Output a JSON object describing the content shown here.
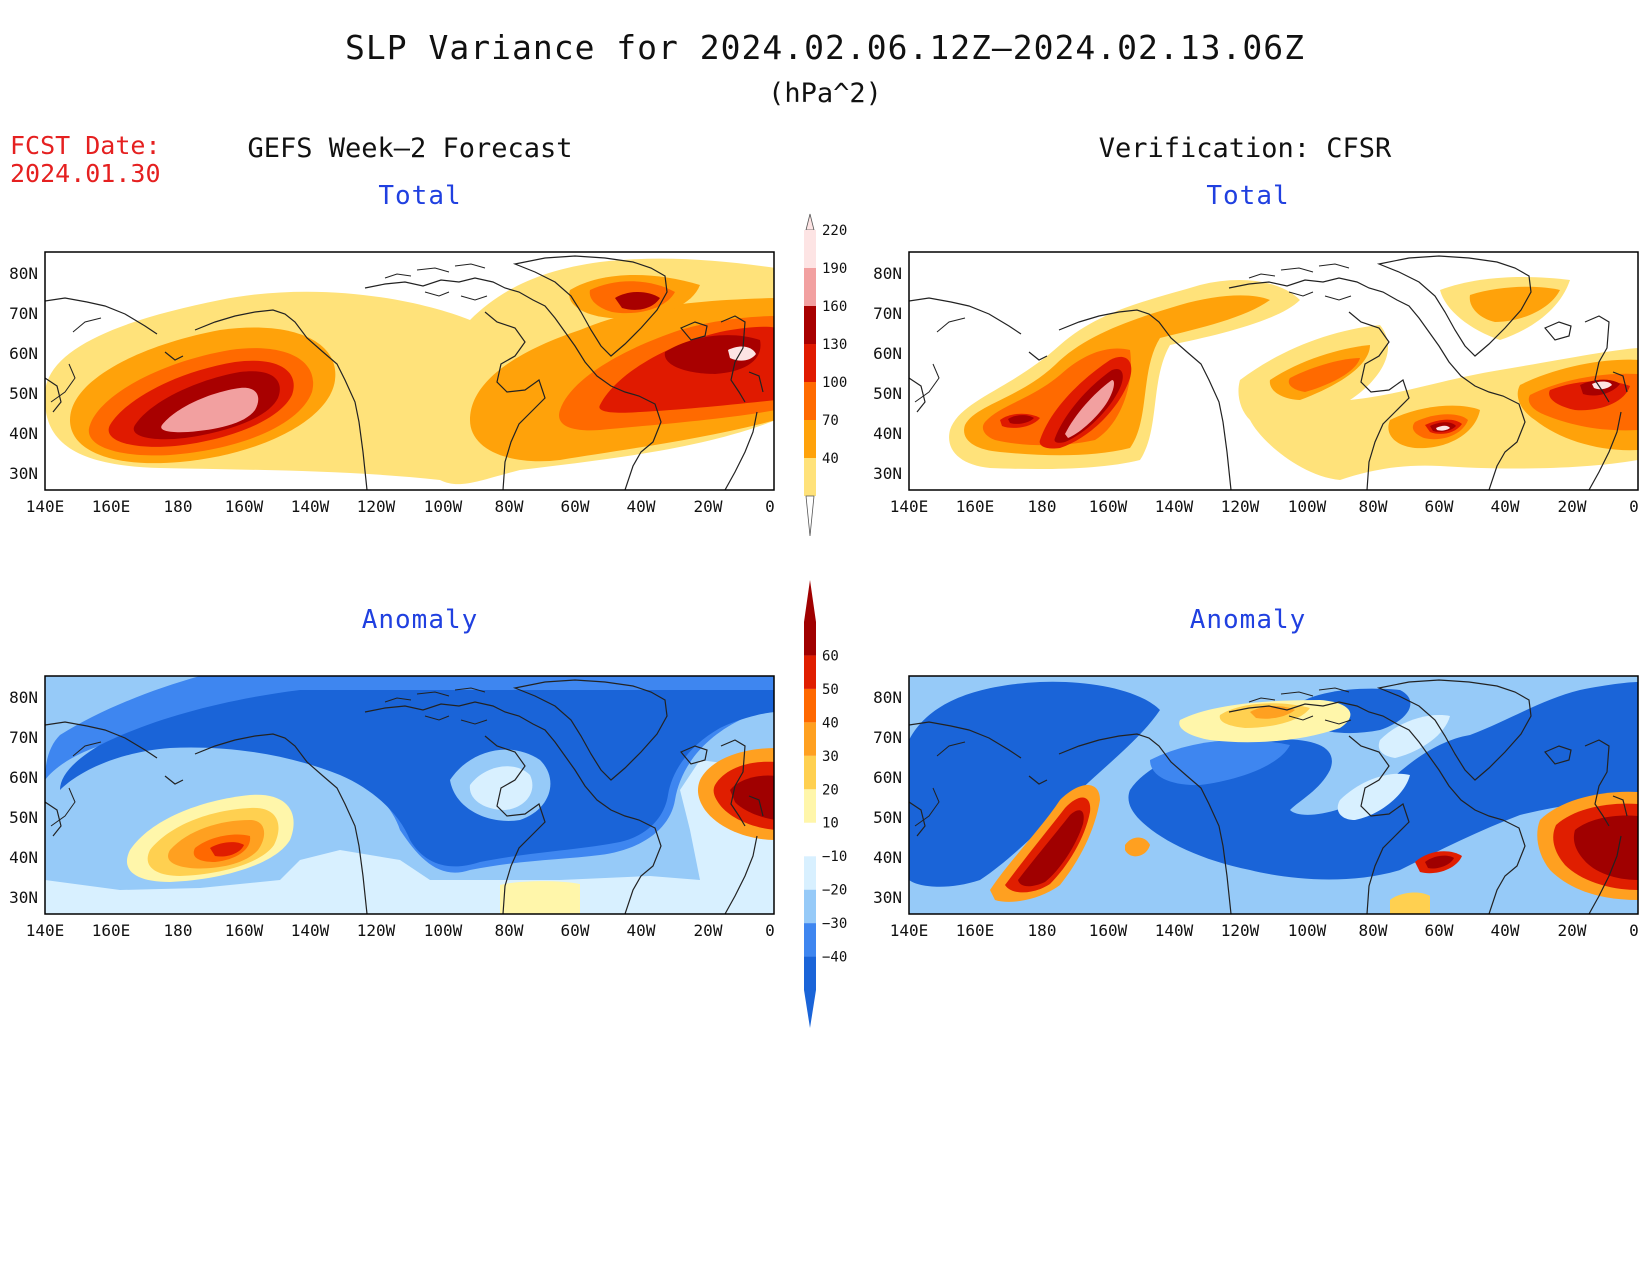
{
  "title": "SLP Variance for 2024.02.06.12Z–2024.02.13.06Z",
  "units": "(hPa^2)",
  "fcst_label": "FCST Date:",
  "fcst_date": "2024.01.30",
  "columns": {
    "left": "GEFS Week–2 Forecast",
    "right": "Verification: CFSR"
  },
  "panels": {
    "top_left": "Total",
    "top_right": "Total",
    "bottom_left": "Anomaly",
    "bottom_right": "Anomaly"
  },
  "lat_labels": [
    "80N",
    "70N",
    "60N",
    "50N",
    "40N",
    "30N"
  ],
  "lon_labels": [
    "140E",
    "160E",
    "180",
    "160W",
    "140W",
    "120W",
    "100W",
    "80W",
    "60W",
    "40W",
    "20W",
    "0"
  ],
  "colorbar_total": {
    "levels": [
      "40",
      "70",
      "100",
      "130",
      "160",
      "190",
      "220"
    ],
    "colors": [
      "#ffe27a",
      "#ffa20a",
      "#ff6a00",
      "#e01a00",
      "#a80000",
      "#f2a0a0",
      "#fde4e4"
    ]
  },
  "colorbar_anomaly": {
    "levels": [
      "−40",
      "−30",
      "−20",
      "−10",
      "10",
      "20",
      "30",
      "40",
      "50",
      "60"
    ],
    "colors": [
      "#1a64d8",
      "#3e86f0",
      "#96caf8",
      "#d8f0ff",
      "#ffffff",
      "#fff6aa",
      "#ffd050",
      "#ffa020",
      "#ff6800",
      "#e01e00",
      "#a00000"
    ]
  },
  "map_data": {
    "type": "filled-contour-map",
    "projection": "cylindrical",
    "lon_range": [
      "140E",
      "0"
    ],
    "lat_range": [
      "25N",
      "85N"
    ]
  }
}
